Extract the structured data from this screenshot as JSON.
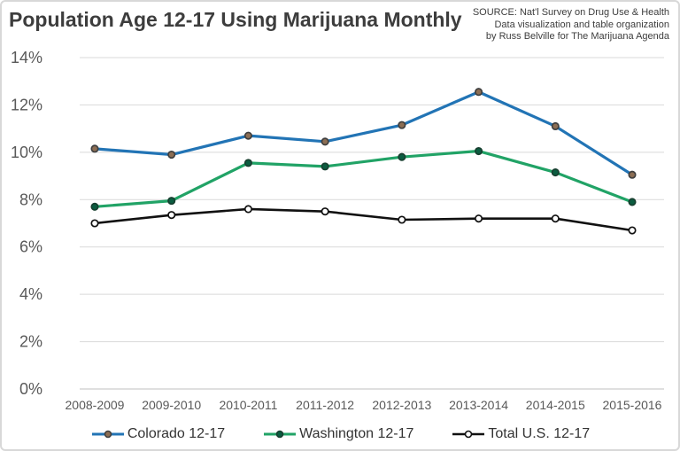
{
  "header": {
    "title": "Population Age 12-17 Using Marijuana Monthly",
    "source_lines": [
      "SOURCE: Nat'l Survey on Drug Use & Health",
      "Data visualization and table organization",
      "by Russ Belville for The Marijuana Agenda"
    ]
  },
  "colors": {
    "background": "#ffffff",
    "frame_border": "#d8d8d8",
    "title_text": "#3d3d3d",
    "source_text": "#3d3d3d",
    "axis_text": "#595959",
    "legend_text": "#333333",
    "gridline": "#d9d9d9",
    "axis_line": "#bfbfbf"
  },
  "chart_data": {
    "type": "line",
    "title": "Population Age 12-17 Using Marijuana Monthly",
    "xlabel": "",
    "ylabel": "",
    "ylim": [
      0,
      14
    ],
    "ytick_step": 2,
    "yticks": [
      "0%",
      "2%",
      "4%",
      "6%",
      "8%",
      "10%",
      "12%",
      "14%"
    ],
    "grid": true,
    "legend_position": "bottom",
    "categories": [
      "2008-2009",
      "2009-2010",
      "2010-2011",
      "2011-2012",
      "2012-2013",
      "2013-2014",
      "2014-2015",
      "2015-2016"
    ],
    "series": [
      {
        "name": "Colorado 12-17",
        "values": [
          10.15,
          9.9,
          10.7,
          10.45,
          11.15,
          12.55,
          11.1,
          9.05
        ],
        "color": "#2274b5",
        "marker": "circle-filled",
        "marker_fill": "#8c6e54",
        "marker_stroke": "#3f3f3f"
      },
      {
        "name": "Washington 12-17",
        "values": [
          7.7,
          7.95,
          9.55,
          9.4,
          9.8,
          10.05,
          9.15,
          7.9
        ],
        "color": "#21a366",
        "marker": "circle-filled",
        "marker_fill": "#0b5c40",
        "marker_stroke": "#173f2f"
      },
      {
        "name": "Total U.S. 12-17",
        "values": [
          7.0,
          7.35,
          7.6,
          7.5,
          7.15,
          7.2,
          7.2,
          6.7
        ],
        "color": "#111111",
        "marker": "circle-open",
        "marker_fill": "#ffffff",
        "marker_stroke": "#111111"
      }
    ]
  }
}
